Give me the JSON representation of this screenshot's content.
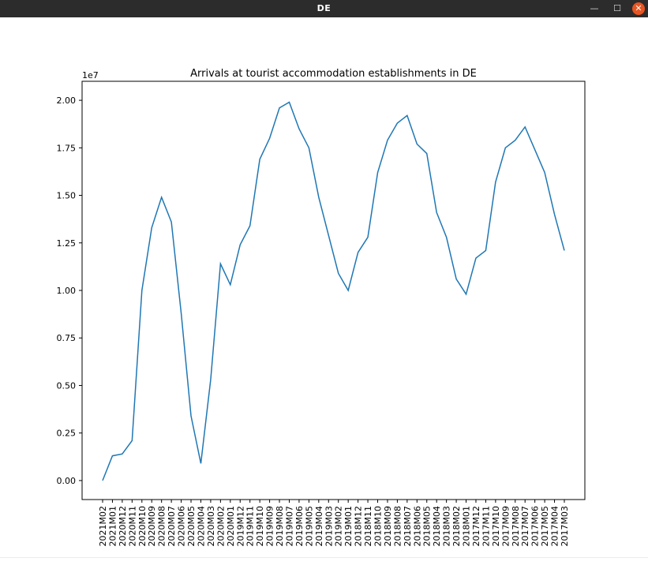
{
  "window": {
    "title": "DE",
    "min_glyph": "—",
    "max_glyph": "☐",
    "close_glyph": "✕",
    "close_color": "#e95420"
  },
  "chart_data": {
    "type": "line",
    "title": "Arrivals at tourist accommodation establishments in DE",
    "y_offset_label": "1e7",
    "xlabel": "",
    "ylabel": "",
    "ylim": [
      -0.1,
      2.1
    ],
    "y_ticks": [
      0.0,
      0.25,
      0.5,
      0.75,
      1.0,
      1.25,
      1.5,
      1.75,
      2.0
    ],
    "y_tick_labels": [
      "0.00",
      "0.25",
      "0.50",
      "0.75",
      "1.00",
      "1.25",
      "1.50",
      "1.75",
      "2.00"
    ],
    "line_color": "#1f77b4",
    "grid": false,
    "categories": [
      "2021M02",
      "2021M01",
      "2020M12",
      "2020M11",
      "2020M10",
      "2020M09",
      "2020M08",
      "2020M07",
      "2020M06",
      "2020M05",
      "2020M04",
      "2020M03",
      "2020M02",
      "2020M01",
      "2019M12",
      "2019M11",
      "2019M10",
      "2019M09",
      "2019M08",
      "2019M07",
      "2019M06",
      "2019M05",
      "2019M04",
      "2019M03",
      "2019M02",
      "2019M01",
      "2018M12",
      "2018M11",
      "2018M10",
      "2018M09",
      "2018M08",
      "2018M07",
      "2018M06",
      "2018M05",
      "2018M04",
      "2018M03",
      "2018M02",
      "2018M01",
      "2017M12",
      "2017M11",
      "2017M10",
      "2017M09",
      "2017M08",
      "2017M07",
      "2017M06",
      "2017M05",
      "2017M04",
      "2017M03"
    ],
    "series": [
      {
        "values": [
          0.0,
          0.13,
          0.14,
          0.21,
          1.0,
          1.33,
          1.49,
          1.36,
          0.88,
          0.34,
          0.09,
          0.53,
          1.14,
          1.03,
          1.24,
          1.34,
          1.69,
          1.8,
          1.96,
          1.99,
          1.85,
          1.75,
          1.49,
          1.29,
          1.09,
          1.0,
          1.2,
          1.28,
          1.62,
          1.79,
          1.88,
          1.92,
          1.77,
          1.72,
          1.41,
          1.28,
          1.06,
          0.98,
          1.17,
          1.21,
          1.57,
          1.75,
          1.79,
          1.86,
          1.74,
          1.62,
          1.4,
          1.21
        ]
      }
    ]
  }
}
